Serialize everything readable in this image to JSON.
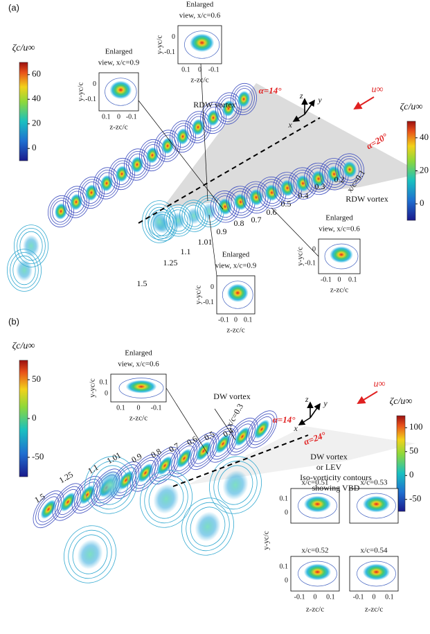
{
  "panel_a": {
    "label": "(a)",
    "colorbar_left": {
      "title": "ζc/u∞",
      "ticks": [
        60,
        40,
        20,
        0
      ]
    },
    "colorbar_right": {
      "title": "ζc/u∞",
      "ticks": [
        40,
        20,
        0
      ]
    },
    "flow_label": "u∞",
    "axes": [
      "z",
      "y",
      "x"
    ],
    "alpha_labels": [
      "α=14°",
      "α=20°"
    ],
    "vortex_labels": [
      "RDW vortex",
      "RDW vortex"
    ],
    "station_labels": [
      "x/c=0.1",
      "0.2",
      "0.3",
      "0.4",
      "0.5",
      "0.6",
      "0.7",
      "0.8",
      "0.9",
      "1.01",
      "1.1",
      "1.25",
      "1.5"
    ],
    "insets": [
      {
        "title": [
          "Enlarged",
          "view, x/c=0.9"
        ],
        "xlabel": "z-zc/c",
        "ylabel": "y-yc/c",
        "xticks": [
          0.1,
          0,
          -0.1
        ],
        "yticks": [
          0,
          -0.1
        ]
      },
      {
        "title": [
          "Enlarged",
          "view, x/c=0.6"
        ],
        "xlabel": "z-zc/c",
        "ylabel": "y-yc/c",
        "xticks": [
          0.1,
          0,
          -0.1
        ],
        "yticks": [
          0,
          -0.1
        ]
      },
      {
        "title": [
          "Enlarged",
          "view, x/c=0.6"
        ],
        "xlabel": "z-zc/c",
        "ylabel": "y-yc/c",
        "xticks": [
          -0.1,
          0,
          0.1
        ],
        "yticks": [
          0,
          -0.1
        ]
      },
      {
        "title": [
          "Enlarged",
          "view, x/c=0.9"
        ],
        "xlabel": "z-zc/c",
        "ylabel": "y-yc/c",
        "xticks": [
          -0.1,
          0,
          0.1
        ],
        "yticks": [
          0,
          -0.1
        ]
      }
    ]
  },
  "panel_b": {
    "label": "(b)",
    "colorbar_left": {
      "title": "ζc/u∞",
      "ticks": [
        50,
        0,
        -50
      ]
    },
    "colorbar_right": {
      "title": "ζc/u∞",
      "ticks": [
        100,
        50,
        0,
        -50
      ]
    },
    "flow_label": "u∞",
    "axes": [
      "z",
      "y",
      "x"
    ],
    "alpha_labels": [
      "α=14°",
      "α=24°"
    ],
    "vortex_labels": [
      "DW vortex"
    ],
    "lev_label": [
      "DW vortex",
      "or LEV"
    ],
    "contour_label": [
      "Iso-vorticity contours",
      "showing VBD"
    ],
    "station_labels": [
      "x/c=0.3",
      "0.4",
      "0.5",
      "0.6",
      "0.7",
      "0.8",
      "0.9",
      "1.01",
      "1.1",
      "1.25",
      "1.5"
    ],
    "inset": {
      "title": [
        "Enlarged",
        "view, x/c=0.6"
      ],
      "xlabel": "z-zc/c",
      "ylabel": "y-yc/c",
      "xticks": [
        0.1,
        0,
        -0.1
      ],
      "yticks": [
        0.1,
        0
      ]
    },
    "vbd_insets": {
      "ylabel": "y-yc/c",
      "xlabels": [
        "z-zc/c",
        "z-zc/c"
      ],
      "panels": [
        {
          "title": "x/c=0.51",
          "yticks": [
            0.1,
            0
          ]
        },
        {
          "title": "x/c=0.53"
        },
        {
          "title": "x/c=0.52",
          "yticks": [
            0.1,
            0
          ],
          "xticks": [
            -0.1,
            0,
            0.1
          ]
        },
        {
          "title": "x/c=0.54",
          "xticks": [
            -0.1,
            0,
            0.1
          ]
        }
      ]
    }
  }
}
